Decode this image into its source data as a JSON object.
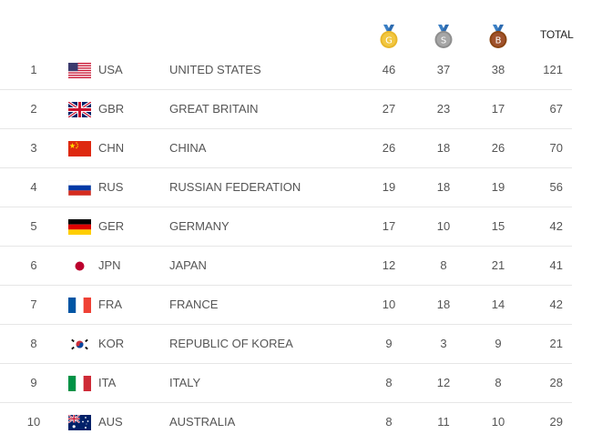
{
  "header": {
    "gold_label": "G",
    "silver_label": "S",
    "bronze_label": "B",
    "total_label": "TOTAL"
  },
  "colors": {
    "gold": "#e8b72b",
    "silver": "#9a9a9a",
    "bronze": "#a0522d",
    "divider": "#e6e6e6"
  },
  "rows": [
    {
      "rank": "1",
      "code": "USA",
      "name": "UNITED STATES",
      "gold": "46",
      "silver": "37",
      "bronze": "38",
      "total": "121",
      "flag": "usa-flag-icon"
    },
    {
      "rank": "2",
      "code": "GBR",
      "name": "GREAT BRITAIN",
      "gold": "27",
      "silver": "23",
      "bronze": "17",
      "total": "67",
      "flag": "gbr-flag-icon"
    },
    {
      "rank": "3",
      "code": "CHN",
      "name": "CHINA",
      "gold": "26",
      "silver": "18",
      "bronze": "26",
      "total": "70",
      "flag": "chn-flag-icon"
    },
    {
      "rank": "4",
      "code": "RUS",
      "name": "RUSSIAN FEDERATION",
      "gold": "19",
      "silver": "18",
      "bronze": "19",
      "total": "56",
      "flag": "rus-flag-icon"
    },
    {
      "rank": "5",
      "code": "GER",
      "name": "GERMANY",
      "gold": "17",
      "silver": "10",
      "bronze": "15",
      "total": "42",
      "flag": "ger-flag-icon"
    },
    {
      "rank": "6",
      "code": "JPN",
      "name": "JAPAN",
      "gold": "12",
      "silver": "8",
      "bronze": "21",
      "total": "41",
      "flag": "jpn-flag-icon"
    },
    {
      "rank": "7",
      "code": "FRA",
      "name": "FRANCE",
      "gold": "10",
      "silver": "18",
      "bronze": "14",
      "total": "42",
      "flag": "fra-flag-icon"
    },
    {
      "rank": "8",
      "code": "KOR",
      "name": "REPUBLIC OF KOREA",
      "gold": "9",
      "silver": "3",
      "bronze": "9",
      "total": "21",
      "flag": "kor-flag-icon"
    },
    {
      "rank": "9",
      "code": "ITA",
      "name": "ITALY",
      "gold": "8",
      "silver": "12",
      "bronze": "8",
      "total": "28",
      "flag": "ita-flag-icon"
    },
    {
      "rank": "10",
      "code": "AUS",
      "name": "AUSTRALIA",
      "gold": "8",
      "silver": "11",
      "bronze": "10",
      "total": "29",
      "flag": "aus-flag-icon"
    }
  ]
}
